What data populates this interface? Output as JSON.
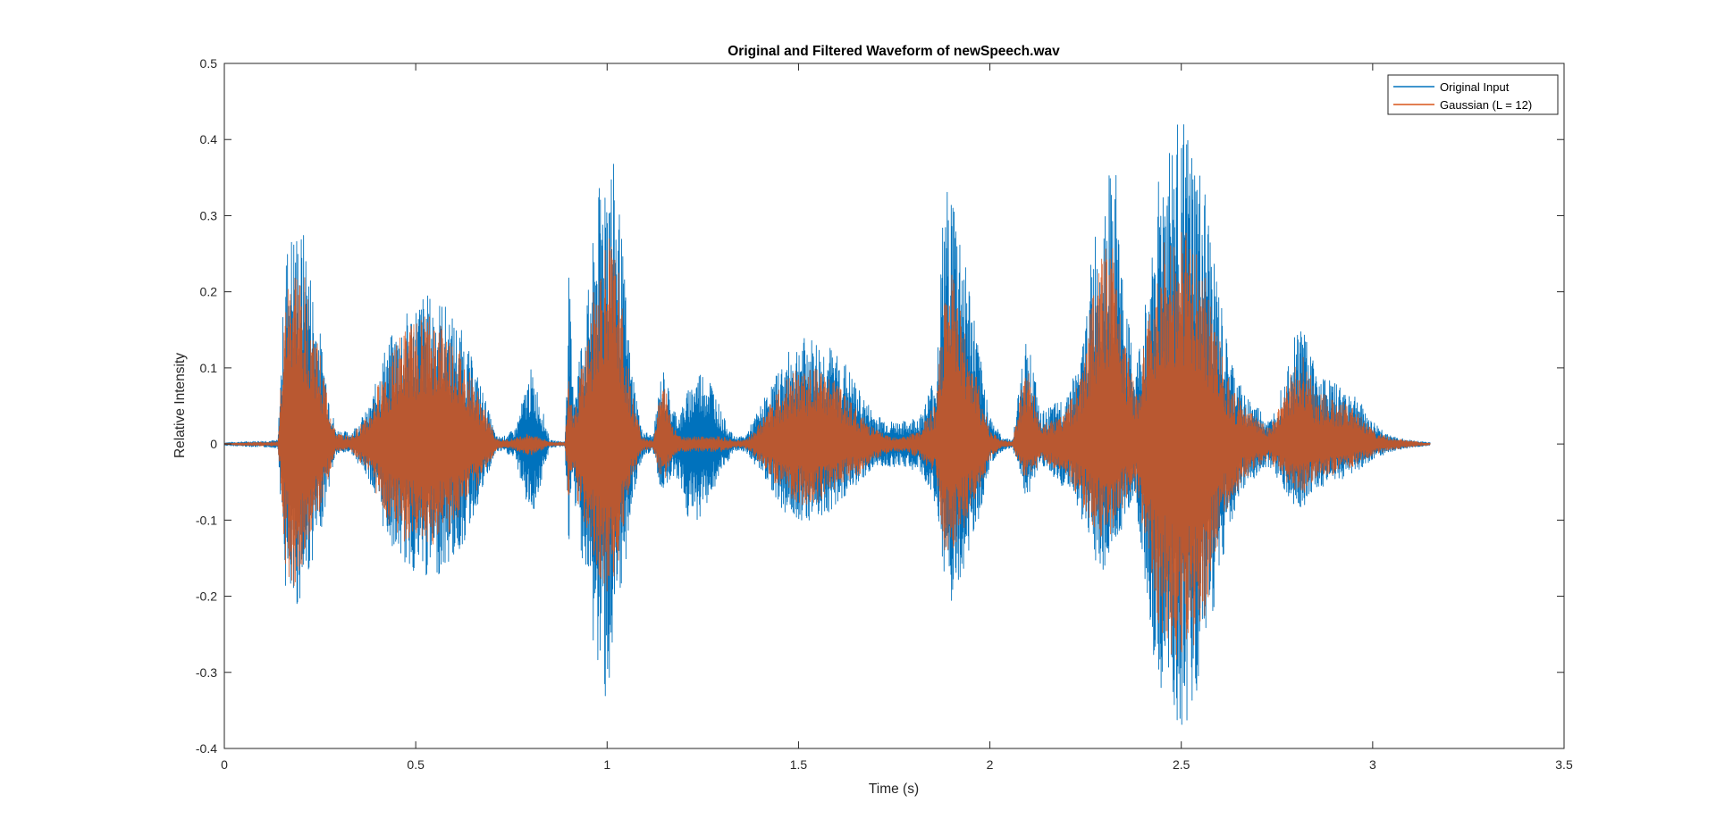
{
  "chart_data": {
    "type": "line",
    "title": "Original and Filtered Waveform of newSpeech.wav",
    "xlabel": "Time (s)",
    "ylabel": "Relative Intensity",
    "xlim": [
      0,
      3.5
    ],
    "ylim": [
      -0.4,
      0.5
    ],
    "x_ticks": [
      0,
      0.5,
      1,
      1.5,
      2,
      2.5,
      3,
      3.5
    ],
    "x_tick_labels": [
      "0",
      "0.5",
      "1",
      "1.5",
      "2",
      "2.5",
      "3",
      "3.5"
    ],
    "y_ticks": [
      0.5,
      0.4,
      0.3,
      0.2,
      0.1,
      0,
      -0.1,
      -0.2,
      -0.3,
      -0.4
    ],
    "y_tick_labels": [
      "0.5",
      "0.4",
      "0.3",
      "0.2",
      "0.1",
      "0",
      "-0.1",
      "-0.2",
      "-0.3",
      "-0.4"
    ],
    "grid": false,
    "legend_position": "top-right",
    "series": [
      {
        "name": "Original Input",
        "color": "#0072BD",
        "envelope_time": [
          0,
          0.14,
          0.16,
          0.18,
          0.21,
          0.25,
          0.29,
          0.33,
          0.38,
          0.42,
          0.47,
          0.52,
          0.57,
          0.62,
          0.67,
          0.71,
          0.73,
          0.76,
          0.8,
          0.82,
          0.85,
          0.89,
          0.9,
          0.91,
          0.92,
          0.95,
          0.97,
          1.0,
          1.03,
          1.06,
          1.09,
          1.12,
          1.14,
          1.15,
          1.17,
          1.19,
          1.21,
          1.24,
          1.27,
          1.3,
          1.33,
          1.36,
          1.39,
          1.42,
          1.46,
          1.5,
          1.54,
          1.58,
          1.62,
          1.66,
          1.7,
          1.74,
          1.78,
          1.82,
          1.86,
          1.88,
          1.9,
          1.92,
          1.94,
          1.97,
          2.0,
          2.03,
          2.06,
          2.09,
          2.11,
          2.13,
          2.16,
          2.19,
          2.21,
          2.24,
          2.27,
          2.3,
          2.33,
          2.35,
          2.38,
          2.41,
          2.44,
          2.47,
          2.5,
          2.53,
          2.56,
          2.59,
          2.62,
          2.66,
          2.7,
          2.73,
          2.74,
          2.76,
          2.79,
          2.82,
          2.85,
          2.9,
          2.95,
          3.0,
          3.05,
          3.1,
          3.15
        ],
        "envelope_upper": [
          0.002,
          0.005,
          0.26,
          0.29,
          0.28,
          0.15,
          0.02,
          0.015,
          0.05,
          0.13,
          0.17,
          0.2,
          0.19,
          0.15,
          0.08,
          0.01,
          0.01,
          0.02,
          0.1,
          0.07,
          0.005,
          0.003,
          0.24,
          0.08,
          0.1,
          0.2,
          0.3,
          0.42,
          0.33,
          0.12,
          0.02,
          0.01,
          0.09,
          0.1,
          0.05,
          0.04,
          0.07,
          0.1,
          0.09,
          0.04,
          0.01,
          0.01,
          0.04,
          0.07,
          0.11,
          0.14,
          0.14,
          0.13,
          0.11,
          0.07,
          0.04,
          0.03,
          0.03,
          0.04,
          0.1,
          0.33,
          0.35,
          0.3,
          0.24,
          0.13,
          0.04,
          0.01,
          0.005,
          0.14,
          0.12,
          0.04,
          0.05,
          0.06,
          0.08,
          0.12,
          0.27,
          0.35,
          0.36,
          0.2,
          0.1,
          0.2,
          0.36,
          0.41,
          0.43,
          0.39,
          0.34,
          0.23,
          0.13,
          0.07,
          0.05,
          0.03,
          0.04,
          0.08,
          0.14,
          0.17,
          0.1,
          0.08,
          0.07,
          0.03,
          0.01,
          0.005,
          0.002
        ],
        "envelope_lower": [
          -0.002,
          -0.005,
          -0.2,
          -0.23,
          -0.19,
          -0.12,
          -0.015,
          -0.01,
          -0.05,
          -0.12,
          -0.16,
          -0.18,
          -0.17,
          -0.14,
          -0.07,
          -0.01,
          -0.01,
          -0.02,
          -0.1,
          -0.07,
          -0.005,
          -0.003,
          -0.15,
          -0.05,
          -0.1,
          -0.2,
          -0.3,
          -0.34,
          -0.25,
          -0.1,
          -0.02,
          -0.01,
          -0.06,
          -0.06,
          -0.04,
          -0.05,
          -0.1,
          -0.1,
          -0.07,
          -0.04,
          -0.01,
          -0.01,
          -0.03,
          -0.05,
          -0.09,
          -0.1,
          -0.1,
          -0.09,
          -0.07,
          -0.05,
          -0.03,
          -0.03,
          -0.03,
          -0.04,
          -0.08,
          -0.21,
          -0.23,
          -0.19,
          -0.15,
          -0.1,
          -0.03,
          -0.01,
          -0.005,
          -0.07,
          -0.06,
          -0.03,
          -0.04,
          -0.06,
          -0.06,
          -0.1,
          -0.15,
          -0.17,
          -0.14,
          -0.1,
          -0.07,
          -0.2,
          -0.33,
          -0.38,
          -0.39,
          -0.35,
          -0.3,
          -0.2,
          -0.12,
          -0.06,
          -0.04,
          -0.03,
          -0.04,
          -0.05,
          -0.08,
          -0.09,
          -0.06,
          -0.05,
          -0.04,
          -0.02,
          -0.01,
          -0.005,
          -0.002
        ]
      },
      {
        "name": "Gaussian (L = 12)",
        "color": "#D95319",
        "envelope_time": [
          0,
          0.14,
          0.16,
          0.18,
          0.21,
          0.25,
          0.29,
          0.33,
          0.38,
          0.42,
          0.47,
          0.52,
          0.57,
          0.62,
          0.67,
          0.71,
          0.73,
          0.76,
          0.8,
          0.82,
          0.85,
          0.89,
          0.9,
          0.91,
          0.92,
          0.95,
          0.97,
          1.0,
          1.03,
          1.06,
          1.09,
          1.12,
          1.14,
          1.15,
          1.17,
          1.19,
          1.21,
          1.24,
          1.27,
          1.3,
          1.33,
          1.36,
          1.39,
          1.42,
          1.46,
          1.5,
          1.54,
          1.58,
          1.62,
          1.66,
          1.7,
          1.74,
          1.78,
          1.82,
          1.86,
          1.88,
          1.9,
          1.92,
          1.94,
          1.97,
          2.0,
          2.03,
          2.06,
          2.09,
          2.11,
          2.13,
          2.16,
          2.19,
          2.21,
          2.24,
          2.27,
          2.3,
          2.33,
          2.35,
          2.38,
          2.41,
          2.44,
          2.47,
          2.5,
          2.53,
          2.56,
          2.59,
          2.62,
          2.66,
          2.7,
          2.73,
          2.74,
          2.76,
          2.79,
          2.82,
          2.85,
          2.9,
          2.95,
          3.0,
          3.05,
          3.1,
          3.15
        ],
        "envelope_upper": [
          0.001,
          0.003,
          0.2,
          0.25,
          0.22,
          0.12,
          0.015,
          0.01,
          0.04,
          0.11,
          0.15,
          0.17,
          0.16,
          0.12,
          0.06,
          0.008,
          0.005,
          0.008,
          0.015,
          0.01,
          0.003,
          0.002,
          0.12,
          0.04,
          0.07,
          0.15,
          0.22,
          0.28,
          0.23,
          0.08,
          0.01,
          0.005,
          0.07,
          0.08,
          0.03,
          0.01,
          0.01,
          0.01,
          0.01,
          0.01,
          0.005,
          0.005,
          0.02,
          0.05,
          0.08,
          0.1,
          0.1,
          0.09,
          0.07,
          0.04,
          0.02,
          0.01,
          0.01,
          0.02,
          0.06,
          0.2,
          0.23,
          0.2,
          0.15,
          0.08,
          0.02,
          0.005,
          0.003,
          0.1,
          0.09,
          0.03,
          0.03,
          0.04,
          0.06,
          0.09,
          0.2,
          0.26,
          0.27,
          0.15,
          0.07,
          0.15,
          0.25,
          0.28,
          0.29,
          0.27,
          0.23,
          0.16,
          0.09,
          0.05,
          0.035,
          0.02,
          0.03,
          0.06,
          0.1,
          0.12,
          0.07,
          0.06,
          0.05,
          0.02,
          0.008,
          0.004,
          0.001
        ],
        "envelope_lower": [
          -0.001,
          -0.003,
          -0.17,
          -0.19,
          -0.16,
          -0.09,
          -0.01,
          -0.008,
          -0.04,
          -0.1,
          -0.13,
          -0.14,
          -0.13,
          -0.1,
          -0.05,
          -0.008,
          -0.005,
          -0.008,
          -0.015,
          -0.01,
          -0.003,
          -0.002,
          -0.08,
          -0.03,
          -0.07,
          -0.14,
          -0.18,
          -0.2,
          -0.16,
          -0.06,
          -0.01,
          -0.005,
          -0.05,
          -0.05,
          -0.02,
          -0.01,
          -0.01,
          -0.01,
          -0.01,
          -0.01,
          -0.005,
          -0.005,
          -0.02,
          -0.04,
          -0.07,
          -0.08,
          -0.08,
          -0.07,
          -0.05,
          -0.04,
          -0.02,
          -0.01,
          -0.01,
          -0.02,
          -0.05,
          -0.14,
          -0.16,
          -0.13,
          -0.1,
          -0.07,
          -0.02,
          -0.005,
          -0.003,
          -0.05,
          -0.05,
          -0.02,
          -0.03,
          -0.04,
          -0.05,
          -0.08,
          -0.11,
          -0.13,
          -0.11,
          -0.08,
          -0.06,
          -0.15,
          -0.24,
          -0.28,
          -0.29,
          -0.27,
          -0.23,
          -0.15,
          -0.09,
          -0.05,
          -0.03,
          -0.02,
          -0.03,
          -0.04,
          -0.06,
          -0.07,
          -0.045,
          -0.04,
          -0.03,
          -0.015,
          -0.008,
          -0.004,
          -0.001
        ]
      }
    ]
  }
}
